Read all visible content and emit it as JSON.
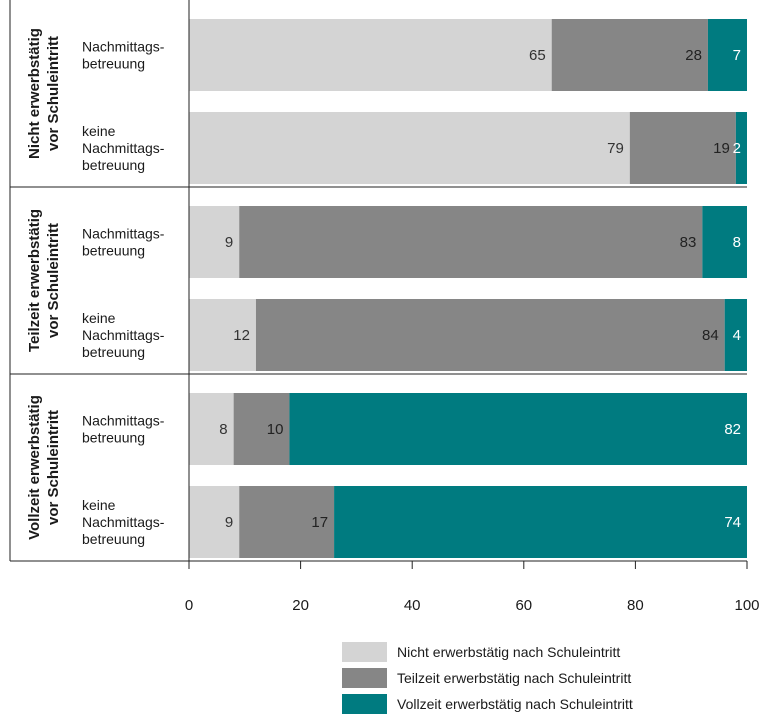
{
  "chart_data": {
    "type": "bar",
    "orientation": "horizontal",
    "stacked": true,
    "xlim": [
      0,
      100
    ],
    "xticks": [
      "0",
      "20",
      "40",
      "60",
      "80",
      "100"
    ],
    "grid": false,
    "legend_position": "bottom-right",
    "colors": [
      "#d4d4d4",
      "#868686",
      "#007b80"
    ],
    "series": [
      {
        "name": "Nicht erwerbstätig nach Schuleintritt",
        "color": "#d4d4d4",
        "text_color": "#333333"
      },
      {
        "name": "Teilzeit erwerbstätig nach Schuleintritt",
        "color": "#868686",
        "text_color": "#222222"
      },
      {
        "name": "Vollzeit erwerbstätig nach Schuleintritt",
        "color": "#007b80",
        "text_color": "#ffffff"
      }
    ],
    "groups": [
      {
        "label_lines": [
          "Nicht erwerbstätig",
          "vor Schuleintritt"
        ],
        "bars": [
          {
            "label_lines": [
              "Nachmittags-",
              "betreuung"
            ],
            "values": [
              65,
              28,
              7
            ]
          },
          {
            "label_lines": [
              "keine",
              "Nachmittags-",
              "betreuung"
            ],
            "values": [
              79,
              19,
              2
            ]
          }
        ]
      },
      {
        "label_lines": [
          "Teilzeit erwerbstätig",
          "vor Schuleintritt"
        ],
        "bars": [
          {
            "label_lines": [
              "Nachmittags-",
              "betreuung"
            ],
            "values": [
              9,
              83,
              8
            ]
          },
          {
            "label_lines": [
              "keine",
              "Nachmittags-",
              "betreuung"
            ],
            "values": [
              12,
              84,
              4
            ]
          }
        ]
      },
      {
        "label_lines": [
          "Vollzeit erwerbstätig",
          "vor Schuleintritt"
        ],
        "bars": [
          {
            "label_lines": [
              "Nachmittags-",
              "betreuung"
            ],
            "values": [
              8,
              10,
              82
            ]
          },
          {
            "label_lines": [
              "keine",
              "Nachmittags-",
              "betreuung"
            ],
            "values": [
              9,
              17,
              74
            ]
          }
        ]
      }
    ]
  }
}
